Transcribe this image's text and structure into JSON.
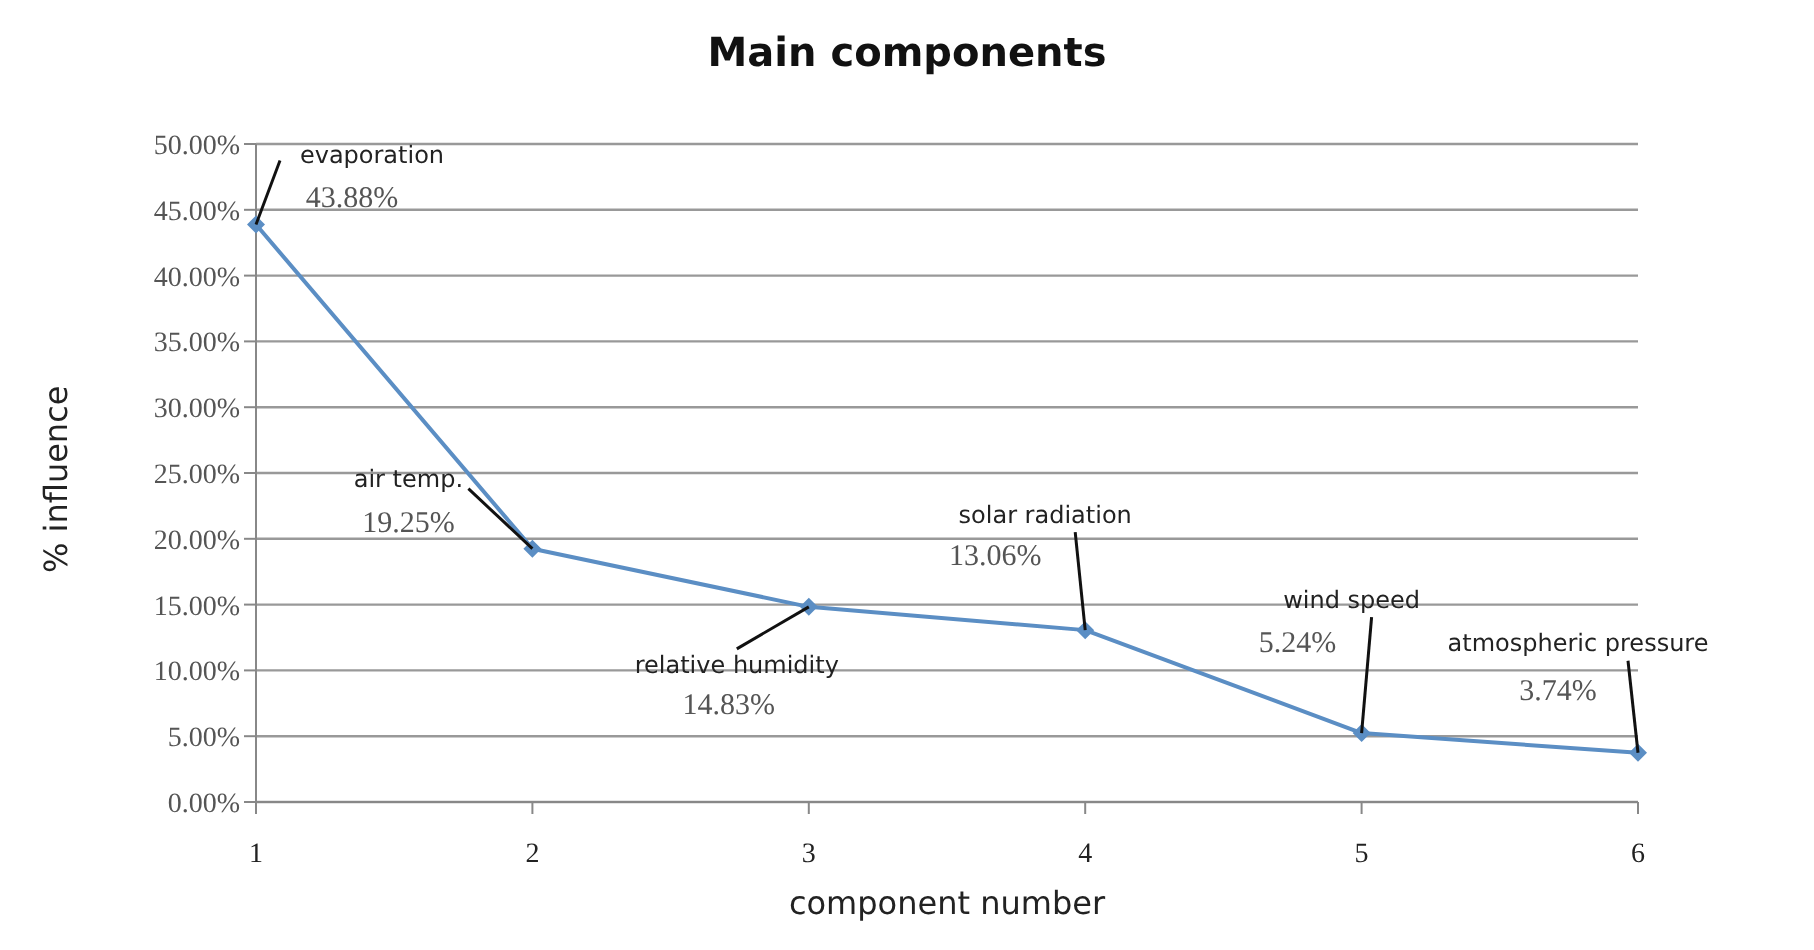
{
  "chart_data": {
    "type": "line",
    "title": "Main components",
    "xlabel": "component number",
    "ylabel": "% influence",
    "categories": [
      "1",
      "2",
      "3",
      "4",
      "5",
      "6"
    ],
    "series": [
      {
        "color": "#5b8ec4",
        "values": [
          43.88,
          19.25,
          14.83,
          13.06,
          5.24,
          3.74
        ],
        "value_labels": [
          "43.88%",
          "19.25%",
          "14.83%",
          "13.06%",
          "5.24%",
          "3.74%"
        ]
      }
    ],
    "ylim": [
      0,
      50
    ],
    "yticks": [
      {
        "value": 0,
        "label": "0.00%"
      },
      {
        "value": 5,
        "label": "5.00%"
      },
      {
        "value": 10,
        "label": "10.00%"
      },
      {
        "value": 15,
        "label": "15.00%"
      },
      {
        "value": 20,
        "label": "20.00%"
      },
      {
        "value": 25,
        "label": "25.00%"
      },
      {
        "value": 30,
        "label": "30.00%"
      },
      {
        "value": 35,
        "label": "35.00%"
      },
      {
        "value": 40,
        "label": "40.00%"
      },
      {
        "value": 45,
        "label": "45.00%"
      },
      {
        "value": 50,
        "label": "50.00%"
      }
    ],
    "annotations": [
      {
        "text": "evaporation",
        "x": "1",
        "y": 43.88
      },
      {
        "text": "air temp.",
        "x": "2",
        "y": 19.25
      },
      {
        "text": "relative humidity",
        "x": "3",
        "y": 14.83
      },
      {
        "text": "solar radiation",
        "x": "4",
        "y": 13.06
      },
      {
        "text": "wind speed",
        "x": "5",
        "y": 5.24
      },
      {
        "text": "atmospheric pressure",
        "x": "6",
        "y": 3.74
      }
    ],
    "grid": "y",
    "marker": "diamond",
    "line_style": "solid",
    "legend": false
  }
}
